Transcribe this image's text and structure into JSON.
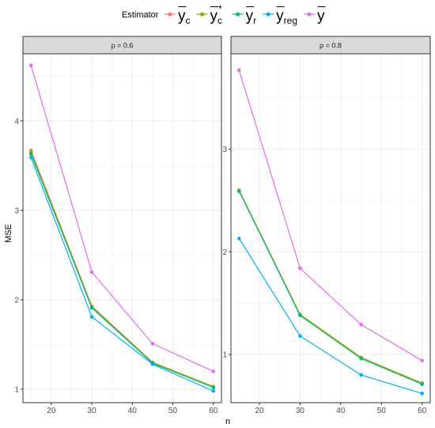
{
  "chart_data": {
    "type": "line",
    "xlabel": "n",
    "ylabel": "MSE",
    "legend": {
      "title": "Estimator",
      "placement": "top",
      "entries": [
        {
          "key": "yc",
          "base": "y",
          "sub": "c",
          "sup": "",
          "bar": true,
          "color": "#F8766D"
        },
        {
          "key": "yc_star",
          "base": "y",
          "sub": "c",
          "sup": "*",
          "bar": true,
          "color": "#A3A500"
        },
        {
          "key": "yr",
          "base": "y",
          "sub": "r",
          "sup": "",
          "bar": true,
          "color": "#00BF7D"
        },
        {
          "key": "yreg",
          "base": "y",
          "sub": "reg",
          "sup": "",
          "bar": true,
          "color": "#00B0F6"
        },
        {
          "key": "ybar",
          "base": "y",
          "sub": "",
          "sup": "",
          "bar": true,
          "color": "#E76BF3"
        }
      ]
    },
    "grid": true,
    "panels": [
      {
        "strip": "ρ = 0.6",
        "xlim": [
          13,
          62
        ],
        "ylim": [
          0.85,
          4.75
        ],
        "xticks": [
          20,
          30,
          40,
          50,
          60
        ],
        "yticks": [
          1,
          2,
          3,
          4
        ],
        "series": [
          {
            "key": "yc",
            "x": [
              15,
              30,
              45,
              60
            ],
            "y": [
              3.67,
              1.93,
              1.3,
              1.03
            ]
          },
          {
            "key": "yc_star",
            "x": [
              15,
              30,
              45,
              60
            ],
            "y": [
              3.65,
              1.92,
              1.3,
              1.03
            ]
          },
          {
            "key": "yr",
            "x": [
              15,
              30,
              45,
              60
            ],
            "y": [
              3.63,
              1.91,
              1.29,
              1.02
            ]
          },
          {
            "key": "yreg",
            "x": [
              15,
              30,
              45,
              60
            ],
            "y": [
              3.59,
              1.81,
              1.28,
              0.98
            ]
          },
          {
            "key": "ybar",
            "x": [
              15,
              30,
              45,
              60
            ],
            "y": [
              4.62,
              2.31,
              1.51,
              1.2
            ]
          }
        ]
      },
      {
        "strip": "ρ = 0.8",
        "xlim": [
          13,
          62
        ],
        "ylim": [
          0.53,
          3.93
        ],
        "xticks": [
          20,
          30,
          40,
          50,
          60
        ],
        "yticks": [
          1,
          2,
          3
        ],
        "series": [
          {
            "key": "yc",
            "x": [
              15,
              30,
              45,
              60
            ],
            "y": [
              2.6,
              1.39,
              0.97,
              0.72
            ]
          },
          {
            "key": "yc_star",
            "x": [
              15,
              30,
              45,
              60
            ],
            "y": [
              2.6,
              1.39,
              0.97,
              0.72
            ]
          },
          {
            "key": "yr",
            "x": [
              15,
              30,
              45,
              60
            ],
            "y": [
              2.59,
              1.38,
              0.96,
              0.71
            ]
          },
          {
            "key": "yreg",
            "x": [
              15,
              30,
              45,
              60
            ],
            "y": [
              2.13,
              1.18,
              0.8,
              0.62
            ]
          },
          {
            "key": "ybar",
            "x": [
              15,
              30,
              45,
              60
            ],
            "y": [
              3.77,
              1.84,
              1.29,
              0.94
            ]
          }
        ]
      }
    ]
  }
}
